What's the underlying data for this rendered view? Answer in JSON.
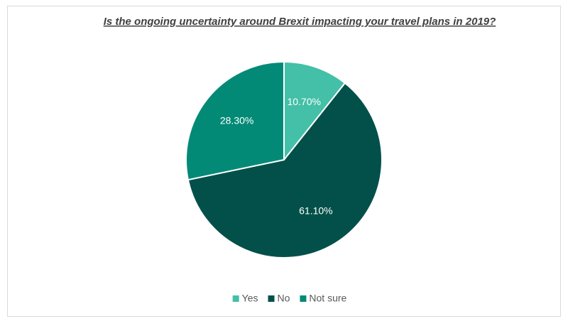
{
  "chart_data": {
    "type": "pie",
    "title": "Is the ongoing uncertainty around Brexit impacting your travel plans in 2019?",
    "categories": [
      "Yes",
      "No",
      "Not sure"
    ],
    "values": [
      10.7,
      61.1,
      28.3
    ],
    "value_labels": [
      "10.70%",
      "61.10%",
      "28.30%"
    ],
    "colors": [
      "#44bfa8",
      "#03504a",
      "#038a77"
    ],
    "legend": "bottom"
  }
}
